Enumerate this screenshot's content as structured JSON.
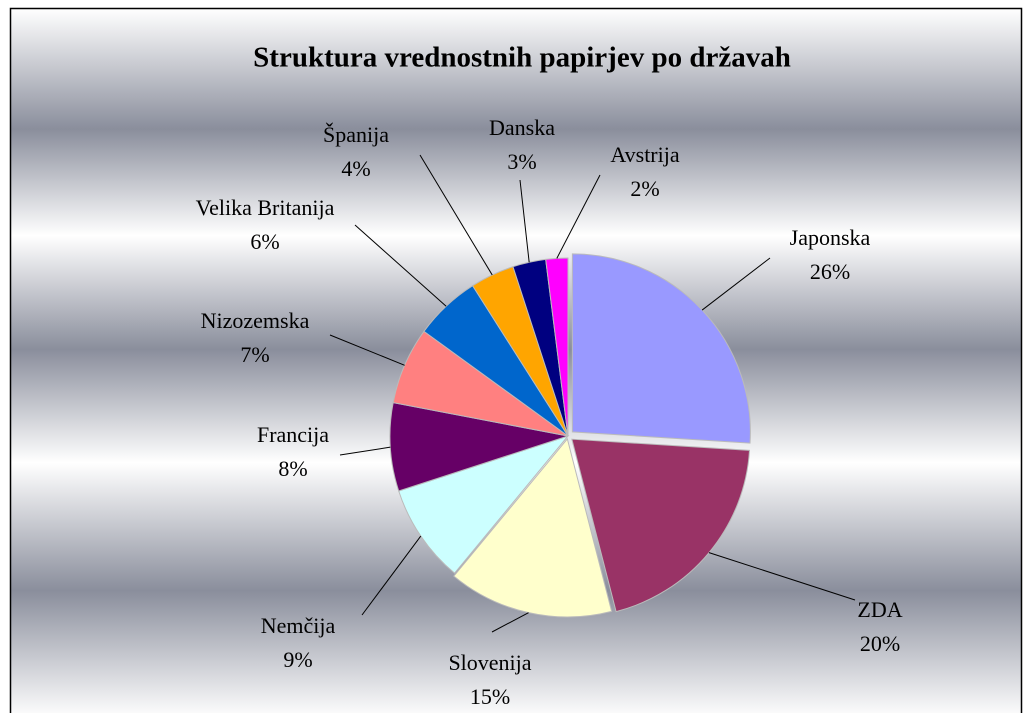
{
  "chart_data": {
    "type": "pie",
    "title": "Struktura vrednostnih papirjev po državah",
    "categories": [
      "Japonska",
      "ZDA",
      "Slovenija",
      "Nemčija",
      "Francija",
      "Nizozemska",
      "Velika Britanija",
      "Španija",
      "Danska",
      "Avstrija"
    ],
    "values": [
      26,
      20,
      15,
      9,
      8,
      7,
      6,
      4,
      3,
      2
    ],
    "value_labels": [
      "26%",
      "20%",
      "15%",
      "9%",
      "8%",
      "7%",
      "6%",
      "4%",
      "3%",
      "2%"
    ],
    "colors": [
      "#9999ff",
      "#993366",
      "#ffffcc",
      "#ccffff",
      "#660066",
      "#ff8080",
      "#0066cc",
      "#ffa500",
      "#000080",
      "#ff00ff"
    ]
  }
}
